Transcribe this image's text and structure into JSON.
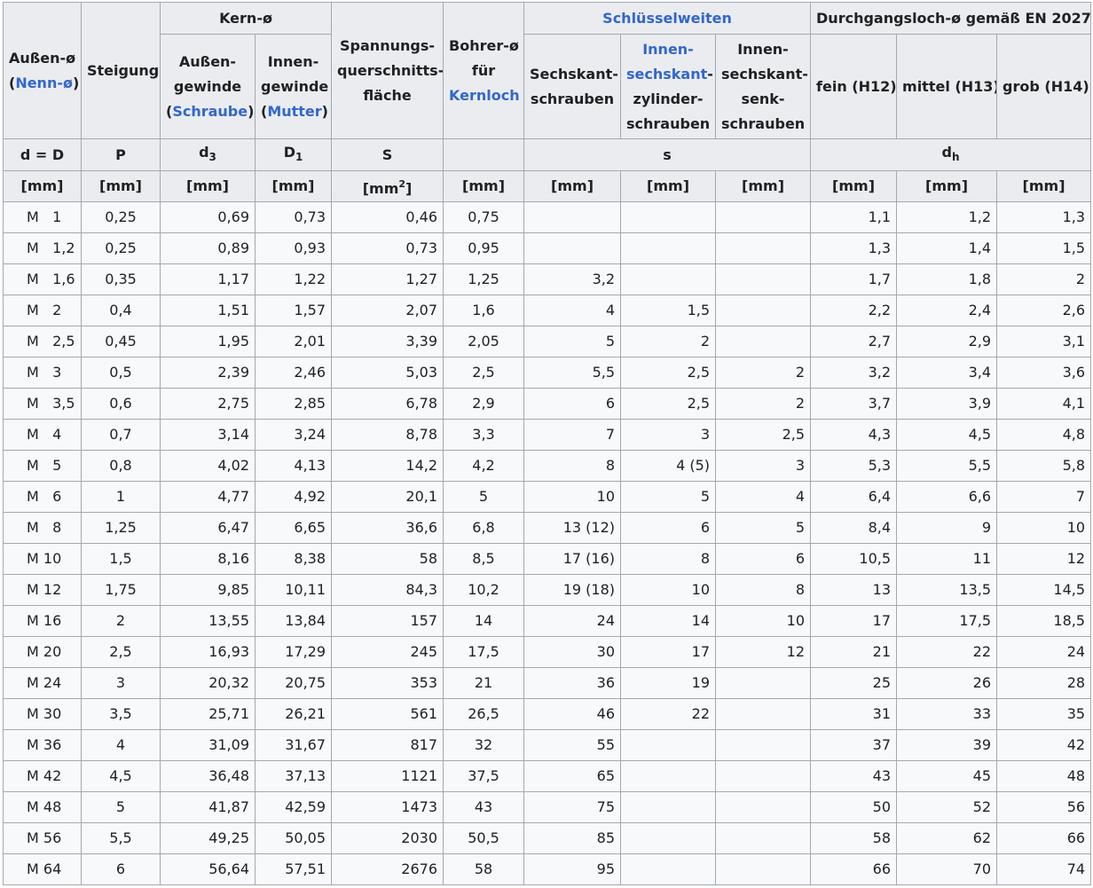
{
  "header": {
    "aussen_d_1": "Außen-ø",
    "aussen_d_open": "(",
    "aussen_d_link": "Nenn-ø",
    "aussen_d_close": ")",
    "steigung": "Steigung",
    "kern": "Kern-ø",
    "kern_aussen_1": "Außen-",
    "kern_aussen_2": "gewinde",
    "kern_aussen_open": "(",
    "kern_aussen_link": "Schraube",
    "kern_aussen_close": ")",
    "kern_innen_1": "Innen-",
    "kern_innen_2": "gewinde",
    "kern_innen_open": "(",
    "kern_innen_link": "Mutter",
    "kern_innen_close": ")",
    "spannung_1": "Spannungs-",
    "spannung_2": "querschnitts-",
    "spannung_3": "fläche",
    "bohrer_1": "Bohrer-ø",
    "bohrer_2": "für",
    "bohrer_link": "Kernloch",
    "schluessel": "Schlüsselweiten",
    "sechskant_1": "Sechskant-",
    "sechskant_2": "schrauben",
    "innen_zyl_link_1": "Innen-",
    "innen_zyl_link_2": "sechskant",
    "innen_zyl_dash": "-",
    "innen_zyl_3": "zylinder-",
    "innen_zyl_4": "schrauben",
    "innen_senk_1": "Innen-",
    "innen_senk_2": "sechskant-",
    "innen_senk_3": "senk-",
    "innen_senk_4": "schrauben",
    "durchgang": "Durchgangsloch-ø gemäß EN 20273",
    "fein": "fein (H12)",
    "mittel": "mittel (H13)",
    "grob": "grob (H14)",
    "sym_d": "d = D",
    "sym_p": "P",
    "sym_d3_base": "d",
    "sym_d3_sub": "3",
    "sym_D1_base": "D",
    "sym_D1_sub": "1",
    "sym_s_big": "S",
    "sym_s": "s",
    "sym_dh_base": "d",
    "sym_dh_sub": "h",
    "unit_mm": "[mm]",
    "unit_mm2_base": "[mm",
    "unit_mm2_sup": "2",
    "unit_mm2_close": "]"
  },
  "rows": [
    [
      "M   1",
      "0,25",
      "0,69",
      "0,73",
      "0,46",
      "0,75",
      "",
      "",
      "",
      "1,1",
      "1,2",
      "1,3"
    ],
    [
      "M   1,2",
      "0,25",
      "0,89",
      "0,93",
      "0,73",
      "0,95",
      "",
      "",
      "",
      "1,3",
      "1,4",
      "1,5"
    ],
    [
      "M   1,6",
      "0,35",
      "1,17",
      "1,22",
      "1,27",
      "1,25",
      "3,2",
      "",
      "",
      "1,7",
      "1,8",
      "2"
    ],
    [
      "M   2",
      "0,4",
      "1,51",
      "1,57",
      "2,07",
      "1,6",
      "4",
      "1,5",
      "",
      "2,2",
      "2,4",
      "2,6"
    ],
    [
      "M   2,5",
      "0,45",
      "1,95",
      "2,01",
      "3,39",
      "2,05",
      "5",
      "2",
      "",
      "2,7",
      "2,9",
      "3,1"
    ],
    [
      "M   3",
      "0,5",
      "2,39",
      "2,46",
      "5,03",
      "2,5",
      "5,5",
      "2,5",
      "2",
      "3,2",
      "3,4",
      "3,6"
    ],
    [
      "M   3,5",
      "0,6",
      "2,75",
      "2,85",
      "6,78",
      "2,9",
      "6",
      "2,5",
      "2",
      "3,7",
      "3,9",
      "4,1"
    ],
    [
      "M   4",
      "0,7",
      "3,14",
      "3,24",
      "8,78",
      "3,3",
      "7",
      "3",
      "2,5",
      "4,3",
      "4,5",
      "4,8"
    ],
    [
      "M   5",
      "0,8",
      "4,02",
      "4,13",
      "14,2",
      "4,2",
      "8",
      "4 (5)",
      "3",
      "5,3",
      "5,5",
      "5,8"
    ],
    [
      "M   6",
      "1",
      "4,77",
      "4,92",
      "20,1",
      "5",
      "10",
      "5",
      "4",
      "6,4",
      "6,6",
      "7"
    ],
    [
      "M   8",
      "1,25",
      "6,47",
      "6,65",
      "36,6",
      "6,8",
      "13 (12)",
      "6",
      "5",
      "8,4",
      "9",
      "10"
    ],
    [
      "M 10",
      "1,5",
      "8,16",
      "8,38",
      "58",
      "8,5",
      "17 (16)",
      "8",
      "6",
      "10,5",
      "11",
      "12"
    ],
    [
      "M 12",
      "1,75",
      "9,85",
      "10,11",
      "84,3",
      "10,2",
      "19 (18)",
      "10",
      "8",
      "13",
      "13,5",
      "14,5"
    ],
    [
      "M 16",
      "2",
      "13,55",
      "13,84",
      "157",
      "14",
      "24",
      "14",
      "10",
      "17",
      "17,5",
      "18,5"
    ],
    [
      "M 20",
      "2,5",
      "16,93",
      "17,29",
      "245",
      "17,5",
      "30",
      "17",
      "12",
      "21",
      "22",
      "24"
    ],
    [
      "M 24",
      "3",
      "20,32",
      "20,75",
      "353",
      "21",
      "36",
      "19",
      "",
      "25",
      "26",
      "28"
    ],
    [
      "M 30",
      "3,5",
      "25,71",
      "26,21",
      "561",
      "26,5",
      "46",
      "22",
      "",
      "31",
      "33",
      "35"
    ],
    [
      "M 36",
      "4",
      "31,09",
      "31,67",
      "817",
      "32",
      "55",
      "",
      "",
      "37",
      "39",
      "42"
    ],
    [
      "M 42",
      "4,5",
      "36,48",
      "37,13",
      "1121",
      "37,5",
      "65",
      "",
      "",
      "43",
      "45",
      "48"
    ],
    [
      "M 48",
      "5",
      "41,87",
      "42,59",
      "1473",
      "43",
      "75",
      "",
      "",
      "50",
      "52",
      "56"
    ],
    [
      "M 56",
      "5,5",
      "49,25",
      "50,05",
      "2030",
      "50,5",
      "85",
      "",
      "",
      "58",
      "62",
      "66"
    ],
    [
      "M 64",
      "6",
      "56,64",
      "57,51",
      "2676",
      "58",
      "95",
      "",
      "",
      "66",
      "70",
      "74"
    ]
  ]
}
